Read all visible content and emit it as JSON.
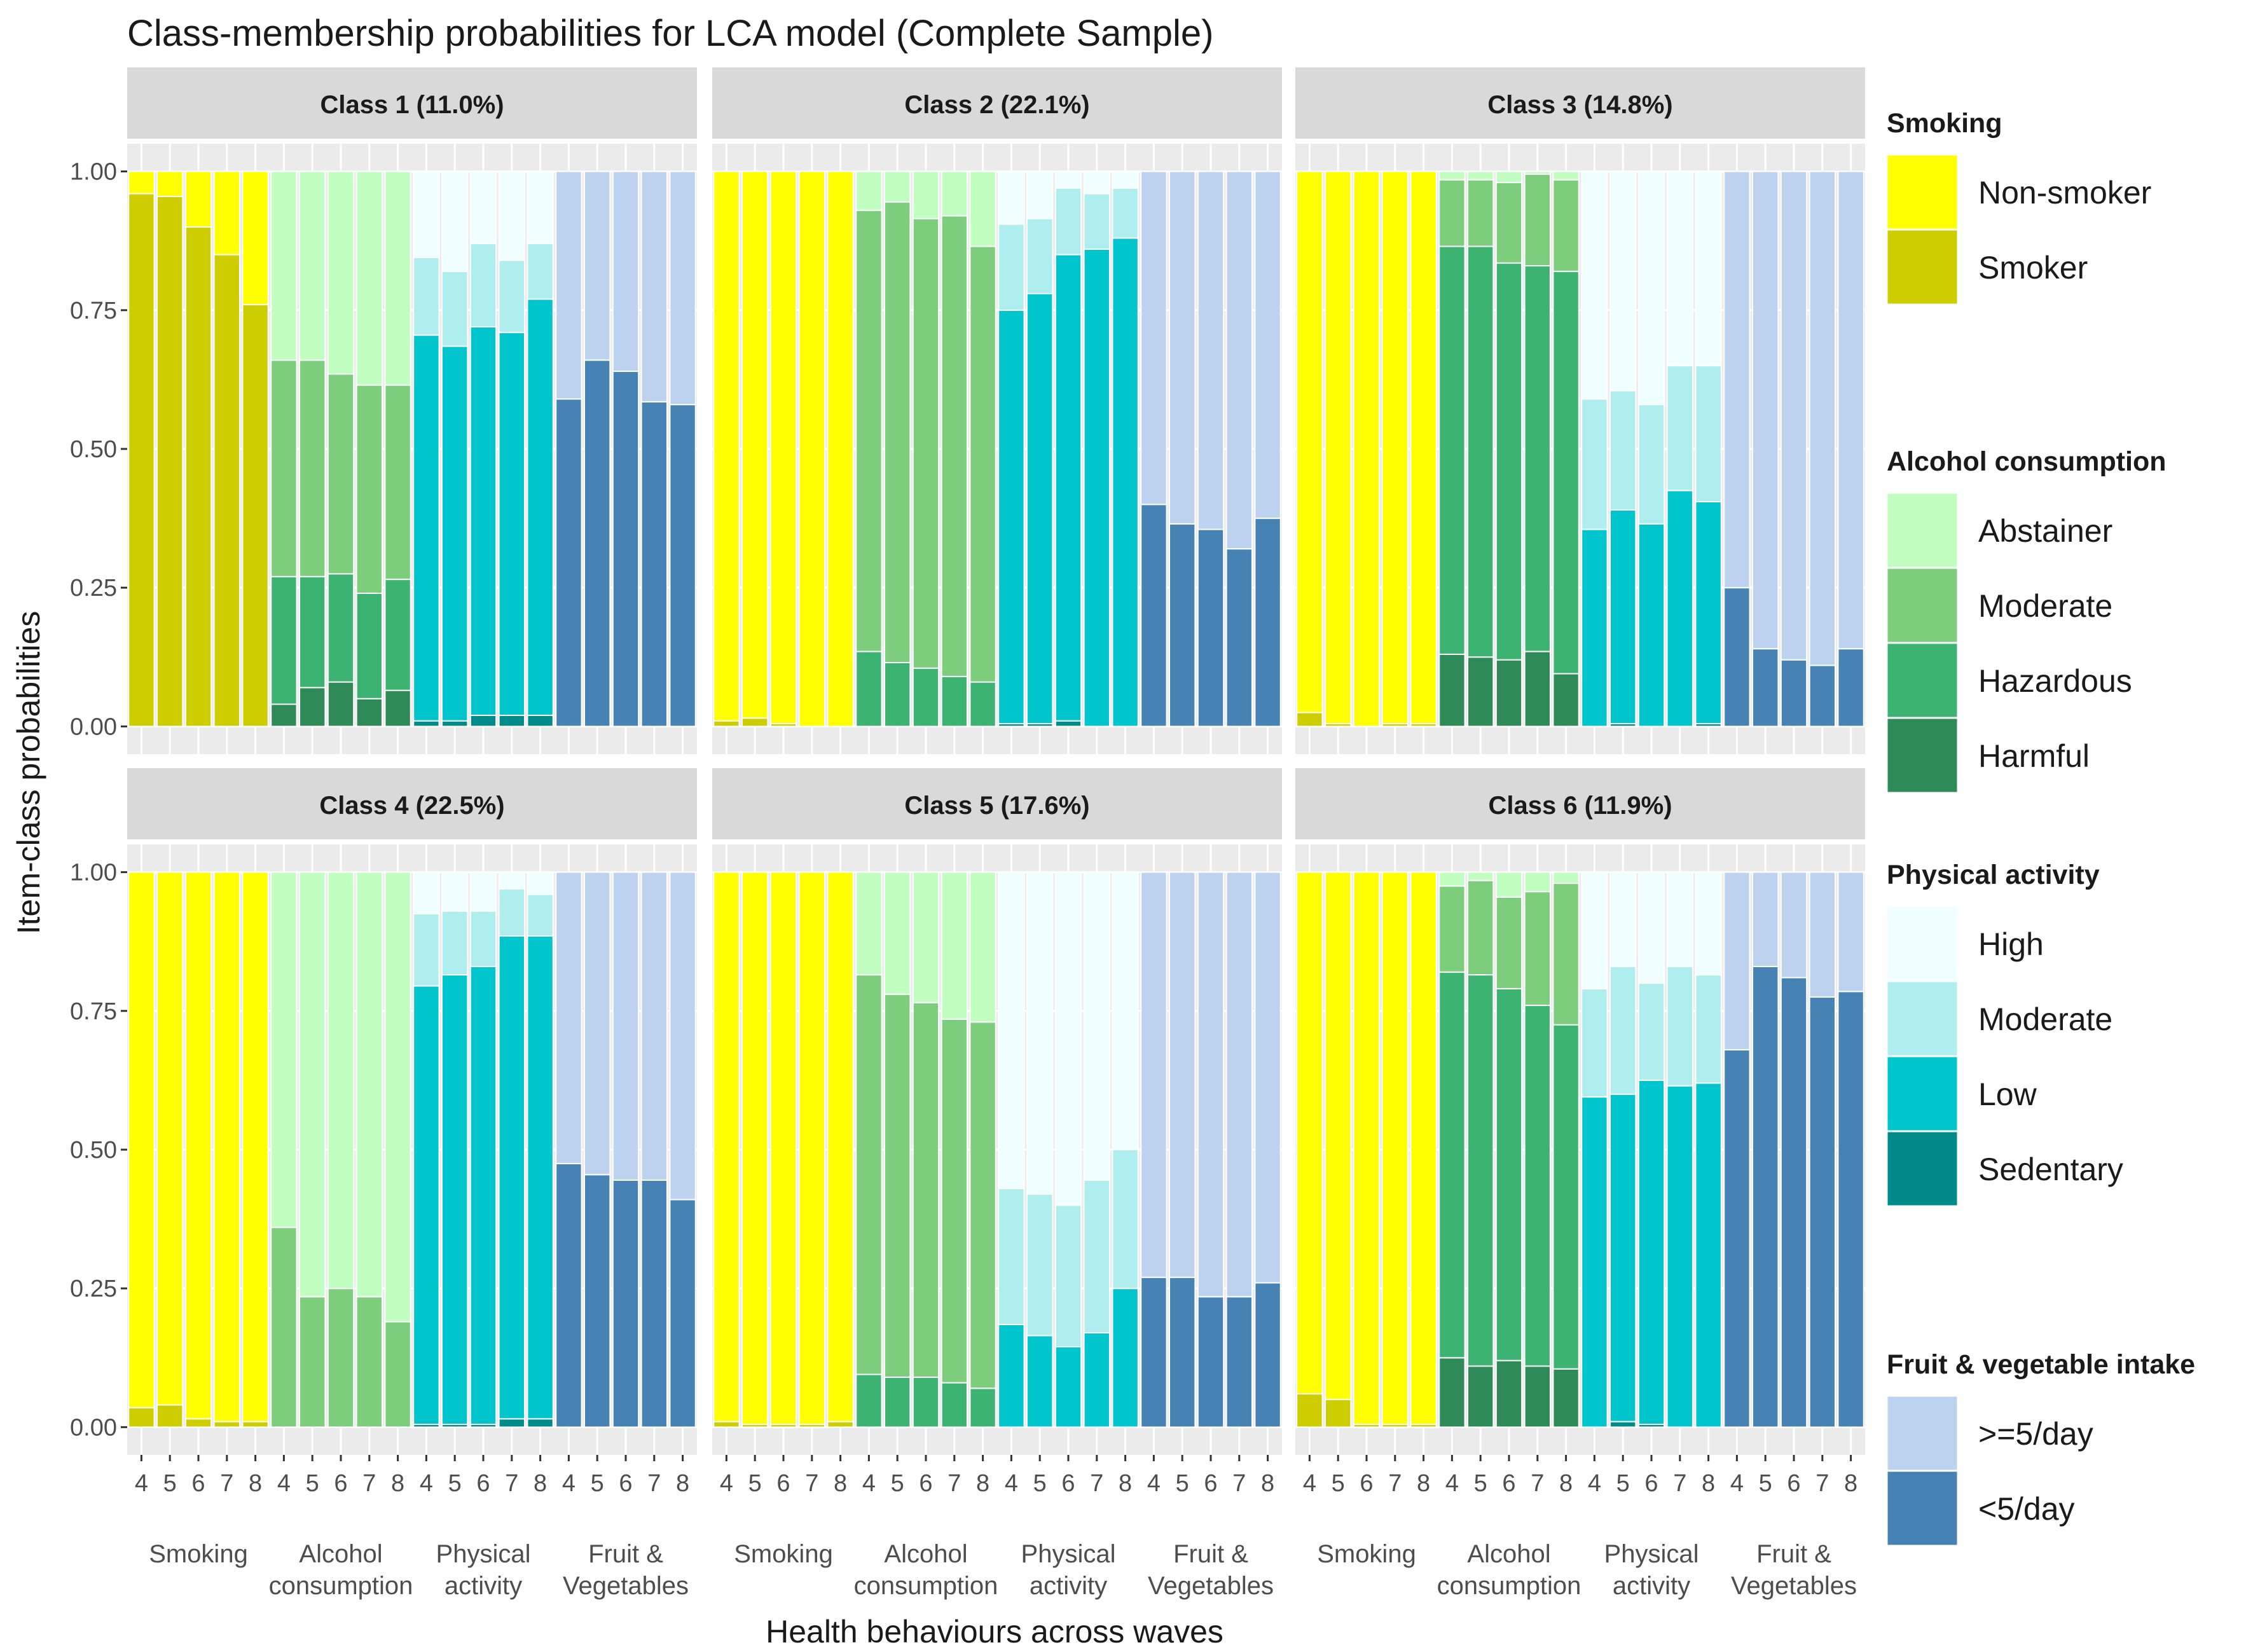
{
  "chart_data": {
    "type": "bar",
    "stacked": true,
    "title": "Class-membership probabilities for LCA model (Complete Sample)",
    "xlabel": "Health behaviours across waves",
    "ylabel": "Item-class probabilities",
    "ylim": [
      0,
      1
    ],
    "yticks": [
      "0.00",
      "0.25",
      "0.50",
      "0.75",
      "1.00"
    ],
    "yticks_values": [
      0,
      0.25,
      0.5,
      0.75,
      1
    ],
    "waves": [
      "4",
      "5",
      "6",
      "7",
      "8"
    ],
    "groups": [
      {
        "key": "smoking",
        "label_lines": [
          "Smoking"
        ]
      },
      {
        "key": "alcohol",
        "label_lines": [
          "Alcohol",
          "consumption"
        ]
      },
      {
        "key": "physical",
        "label_lines": [
          "Physical",
          "activity"
        ]
      },
      {
        "key": "fruit",
        "label_lines": [
          "Fruit &",
          "Vegetables"
        ]
      }
    ],
    "legend": [
      {
        "title": "Smoking",
        "items": [
          {
            "label": "Non-smoker",
            "color": "#FFFF00"
          },
          {
            "label": "Smoker",
            "color": "#CDCD00"
          }
        ]
      },
      {
        "title": "Alcohol consumption",
        "items": [
          {
            "label": "Abstainer",
            "color": "#C1FFC1"
          },
          {
            "label": "Moderate",
            "color": "#7CCD7C"
          },
          {
            "label": "Hazardous",
            "color": "#3CB371"
          },
          {
            "label": "Harmful",
            "color": "#2E8B57"
          }
        ]
      },
      {
        "title": "Physical activity",
        "items": [
          {
            "label": "High",
            "color": "#F0FFFF"
          },
          {
            "label": "Moderate",
            "color": "#AEEEEE"
          },
          {
            "label": "Low",
            "color": "#00C5CD"
          },
          {
            "label": "Sedentary",
            "color": "#008B8B"
          }
        ]
      },
      {
        "title": "Fruit & vegetable intake",
        "items": [
          {
            "label": ">=5/day",
            "color": "#BCD2EE"
          },
          {
            "label": "<5/day",
            "color": "#4682B4"
          }
        ]
      }
    ],
    "legend_placement": "right",
    "grid": true,
    "panels": [
      {
        "label": "Class 1 (11.0%)",
        "smoking_smoker": [
          0.96,
          0.955,
          0.9,
          0.85,
          0.76
        ],
        "alcohol": {
          "harmful": [
            0.04,
            0.07,
            0.08,
            0.05,
            0.065
          ],
          "hazardous": [
            0.23,
            0.2,
            0.195,
            0.19,
            0.2
          ],
          "moderate": [
            0.39,
            0.39,
            0.36,
            0.375,
            0.35
          ]
        },
        "physical": {
          "sedentary": [
            0.01,
            0.01,
            0.02,
            0.02,
            0.02
          ],
          "low": [
            0.695,
            0.675,
            0.7,
            0.69,
            0.75
          ],
          "moderate": [
            0.14,
            0.135,
            0.15,
            0.13,
            0.1
          ]
        },
        "fruit_lt5": [
          0.59,
          0.66,
          0.64,
          0.585,
          0.58
        ]
      },
      {
        "label": "Class 2 (22.1%)",
        "smoking_smoker": [
          0.01,
          0.015,
          0.005,
          0.0,
          0.0
        ],
        "alcohol": {
          "harmful": [
            0.0,
            0.0,
            0.0,
            0.0,
            0.0
          ],
          "hazardous": [
            0.135,
            0.115,
            0.105,
            0.09,
            0.08
          ],
          "moderate": [
            0.795,
            0.83,
            0.81,
            0.83,
            0.785
          ]
        },
        "physical": {
          "sedentary": [
            0.005,
            0.005,
            0.01,
            0.0,
            0.0
          ],
          "low": [
            0.745,
            0.775,
            0.84,
            0.86,
            0.88
          ],
          "moderate": [
            0.155,
            0.135,
            0.12,
            0.1,
            0.09
          ]
        },
        "fruit_lt5": [
          0.4,
          0.365,
          0.355,
          0.32,
          0.375
        ]
      },
      {
        "label": "Class 3 (14.8%)",
        "smoking_smoker": [
          0.025,
          0.005,
          0.0,
          0.005,
          0.005
        ],
        "alcohol": {
          "harmful": [
            0.13,
            0.125,
            0.12,
            0.135,
            0.095
          ],
          "hazardous": [
            0.735,
            0.74,
            0.715,
            0.695,
            0.725
          ],
          "moderate": [
            0.12,
            0.12,
            0.145,
            0.165,
            0.165
          ]
        },
        "physical": {
          "sedentary": [
            0.0,
            0.005,
            0.0,
            0.0,
            0.005
          ],
          "low": [
            0.355,
            0.385,
            0.365,
            0.425,
            0.4
          ],
          "moderate": [
            0.235,
            0.215,
            0.215,
            0.225,
            0.245
          ]
        },
        "fruit_lt5": [
          0.25,
          0.14,
          0.12,
          0.11,
          0.14
        ]
      },
      {
        "label": "Class 4 (22.5%)",
        "smoking_smoker": [
          0.035,
          0.04,
          0.015,
          0.01,
          0.01
        ],
        "alcohol": {
          "harmful": [
            0.0,
            0.0,
            0.0,
            0.0,
            0.0
          ],
          "hazardous": [
            0.0,
            0.0,
            0.0,
            0.0,
            0.0
          ],
          "moderate": [
            0.36,
            0.235,
            0.25,
            0.235,
            0.19
          ]
        },
        "physical": {
          "sedentary": [
            0.005,
            0.005,
            0.005,
            0.015,
            0.015
          ],
          "low": [
            0.79,
            0.81,
            0.825,
            0.87,
            0.87
          ],
          "moderate": [
            0.13,
            0.115,
            0.1,
            0.085,
            0.075
          ]
        },
        "fruit_lt5": [
          0.475,
          0.455,
          0.445,
          0.445,
          0.41
        ]
      },
      {
        "label": "Class 5 (17.6%)",
        "smoking_smoker": [
          0.01,
          0.005,
          0.005,
          0.005,
          0.01
        ],
        "alcohol": {
          "harmful": [
            0.0,
            0.0,
            0.0,
            0.0,
            0.0
          ],
          "hazardous": [
            0.095,
            0.09,
            0.09,
            0.08,
            0.07
          ],
          "moderate": [
            0.72,
            0.69,
            0.675,
            0.655,
            0.66
          ]
        },
        "physical": {
          "sedentary": [
            0.0,
            0.0,
            0.0,
            0.0,
            0.0
          ],
          "low": [
            0.185,
            0.165,
            0.145,
            0.17,
            0.25
          ],
          "moderate": [
            0.245,
            0.255,
            0.255,
            0.275,
            0.25
          ]
        },
        "fruit_lt5": [
          0.27,
          0.27,
          0.235,
          0.235,
          0.26
        ]
      },
      {
        "label": "Class 6 (11.9%)",
        "smoking_smoker": [
          0.06,
          0.05,
          0.005,
          0.005,
          0.005
        ],
        "alcohol": {
          "harmful": [
            0.125,
            0.11,
            0.12,
            0.11,
            0.105
          ],
          "hazardous": [
            0.695,
            0.705,
            0.67,
            0.65,
            0.62
          ],
          "moderate": [
            0.155,
            0.17,
            0.165,
            0.205,
            0.255
          ]
        },
        "physical": {
          "sedentary": [
            0.0,
            0.01,
            0.005,
            0.0,
            0.0
          ],
          "low": [
            0.595,
            0.59,
            0.62,
            0.615,
            0.62
          ],
          "moderate": [
            0.195,
            0.23,
            0.175,
            0.215,
            0.195
          ]
        },
        "fruit_lt5": [
          0.68,
          0.83,
          0.81,
          0.775,
          0.785
        ]
      }
    ]
  }
}
